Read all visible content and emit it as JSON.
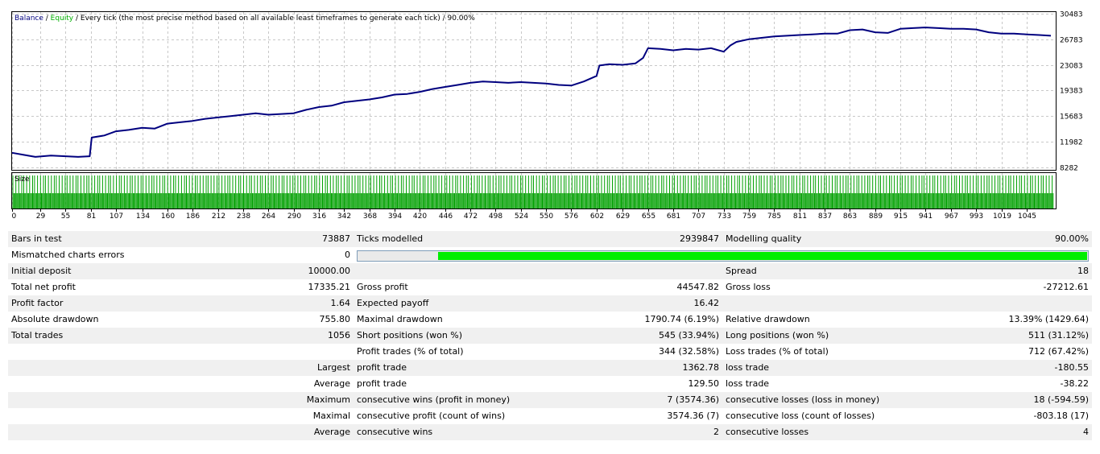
{
  "chart_data": [
    {
      "type": "line",
      "legend": {
        "balance": "Balance",
        "equity": "Equity",
        "rest": " / Every tick (the most precise method based on all available least timeframes to generate each tick) / 90.00%"
      },
      "series": [
        {
          "name": "Balance",
          "color": "#00007f",
          "x": [
            0,
            12,
            24,
            40,
            55,
            68,
            80,
            82,
            95,
            107,
            120,
            134,
            147,
            160,
            173,
            186,
            199,
            212,
            225,
            238,
            251,
            264,
            277,
            290,
            303,
            316,
            329,
            342,
            355,
            368,
            381,
            394,
            407,
            420,
            433,
            446,
            459,
            472,
            485,
            498,
            511,
            524,
            537,
            550,
            563,
            576,
            589,
            602,
            605,
            615,
            629,
            642,
            650,
            655,
            668,
            681,
            694,
            707,
            720,
            733,
            740,
            746,
            759,
            772,
            785,
            798,
            811,
            824,
            837,
            850,
            863,
            876,
            889,
            902,
            915,
            928,
            941,
            954,
            967,
            980,
            993,
            1006,
            1019,
            1032,
            1045,
            1058,
            1070
          ],
          "y": [
            10400,
            10100,
            9800,
            10000,
            9900,
            9800,
            9900,
            12600,
            12900,
            13500,
            13700,
            14000,
            13900,
            14600,
            14800,
            15000,
            15300,
            15500,
            15700,
            15900,
            16100,
            15900,
            16000,
            16100,
            16600,
            17000,
            17200,
            17700,
            17900,
            18100,
            18400,
            18800,
            18900,
            19200,
            19600,
            19900,
            20200,
            20500,
            20700,
            20600,
            20500,
            20600,
            20500,
            20400,
            20200,
            20100,
            20700,
            21500,
            23000,
            23200,
            23100,
            23300,
            24100,
            25500,
            25400,
            25200,
            25400,
            25300,
            25500,
            25000,
            25900,
            26400,
            26800,
            27000,
            27200,
            27300,
            27400,
            27500,
            27600,
            27600,
            28100,
            28200,
            27800,
            27700,
            28300,
            28400,
            28500,
            28400,
            28300,
            28300,
            28200,
            27800,
            27600,
            27600,
            27500,
            27400,
            27300
          ]
        },
        {
          "name": "Equity",
          "color": "#00b000",
          "x": [],
          "y": []
        }
      ],
      "y_ticks": [
        30483,
        26783,
        23083,
        19383,
        15683,
        11982,
        8282
      ],
      "x_ticks": [
        0,
        29,
        55,
        81,
        107,
        134,
        160,
        186,
        212,
        238,
        264,
        290,
        316,
        342,
        368,
        394,
        420,
        446,
        472,
        498,
        524,
        550,
        576,
        602,
        629,
        655,
        681,
        707,
        733,
        759,
        785,
        811,
        837,
        863,
        889,
        915,
        941,
        967,
        993,
        1019,
        1045
      ],
      "x_range": [
        0,
        1070
      ],
      "y_range": [
        8282,
        30483
      ],
      "grid": true
    },
    {
      "type": "bar",
      "title": "Size",
      "color": "#00a000",
      "bar_count": 1056
    }
  ],
  "colors": {
    "balance": "#00007f",
    "equity": "#00b000",
    "size": "#00a000",
    "quality_fill": "#00ee00",
    "row_shade": "#f0f0f0"
  },
  "report": {
    "rows": [
      {
        "shade": true,
        "cells": [
          "Bars in test",
          "73887",
          "Ticks modelled",
          "2939847",
          "Modelling quality",
          "90.00%"
        ]
      },
      {
        "shade": false,
        "cells": [
          "Mismatched charts errors",
          "0",
          "",
          "",
          "",
          ""
        ],
        "quality_bar": {
          "value": 90.0
        }
      },
      {
        "shade": true,
        "cells": [
          "Initial deposit",
          "10000.00",
          "",
          "",
          "Spread",
          "18"
        ]
      },
      {
        "shade": false,
        "cells": [
          "Total net profit",
          "17335.21",
          "Gross profit",
          "44547.82",
          "Gross loss",
          "-27212.61"
        ]
      },
      {
        "shade": true,
        "cells": [
          "Profit factor",
          "1.64",
          "Expected payoff",
          "16.42",
          "",
          ""
        ]
      },
      {
        "shade": false,
        "cells": [
          "Absolute drawdown",
          "755.80",
          "Maximal drawdown",
          "1790.74 (6.19%)",
          "Relative drawdown",
          "13.39% (1429.64)"
        ]
      },
      {
        "shade": true,
        "cells": [
          "Total trades",
          "1056",
          "Short positions (won %)",
          "545 (33.94%)",
          "Long positions (won %)",
          "511 (31.12%)"
        ]
      },
      {
        "shade": false,
        "cells": [
          "",
          "",
          "Profit trades (% of total)",
          "344 (32.58%)",
          "Loss trades (% of total)",
          "712 (67.42%)"
        ]
      },
      {
        "shade": true,
        "cells": [
          "",
          "Largest",
          "profit trade",
          "1362.78",
          "loss trade",
          "-180.55"
        ]
      },
      {
        "shade": false,
        "cells": [
          "",
          "Average",
          "profit trade",
          "129.50",
          "loss trade",
          "-38.22"
        ]
      },
      {
        "shade": true,
        "cells": [
          "",
          "Maximum",
          "consecutive wins (profit in money)",
          "7 (3574.36)",
          "consecutive losses (loss in money)",
          "18 (-594.59)"
        ]
      },
      {
        "shade": false,
        "cells": [
          "",
          "Maximal",
          "consecutive profit (count of wins)",
          "3574.36 (7)",
          "consecutive loss (count of losses)",
          "-803.18 (17)"
        ]
      },
      {
        "shade": true,
        "cells": [
          "",
          "Average",
          "consecutive wins",
          "2",
          "consecutive losses",
          "4"
        ]
      }
    ]
  }
}
